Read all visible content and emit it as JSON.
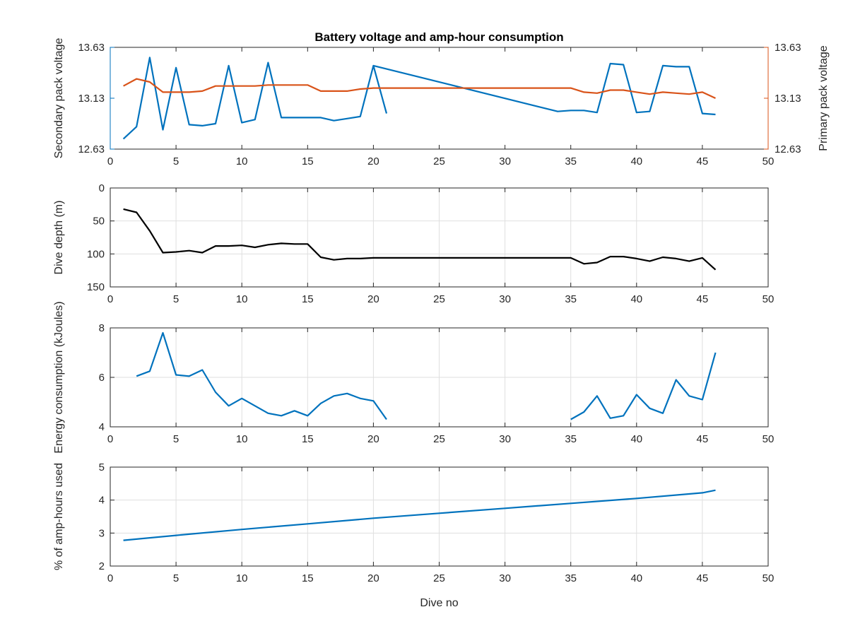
{
  "chart_data": [
    {
      "type": "line",
      "title": "Battery voltage and amp-hour consumption",
      "xlabel": "",
      "ylabel": "Secondary pack voltage",
      "y2label": "Primary pack voltage",
      "xlim": [
        0,
        50
      ],
      "ylim": [
        12.63,
        13.63
      ],
      "y2lim": [
        12.63,
        13.63
      ],
      "xticks": [
        "0",
        "5",
        "10",
        "15",
        "20",
        "25",
        "30",
        "35",
        "40",
        "45",
        "50"
      ],
      "yticks": [
        "12.63",
        "13.13",
        "13.63"
      ],
      "y2ticks": [
        "12.63",
        "13.13",
        "13.63"
      ],
      "grid": false,
      "colors": {
        "left": "#0072bd",
        "right": "#d95319"
      },
      "series": [
        {
          "axis": "left",
          "color": "#0072bd",
          "points": [
            [
              1,
              12.73
            ],
            [
              2,
              12.85
            ],
            [
              3,
              13.53
            ],
            [
              4,
              12.82
            ],
            [
              5,
              13.43
            ],
            [
              6,
              12.87
            ],
            [
              7,
              12.86
            ],
            [
              8,
              12.88
            ],
            [
              9,
              13.45
            ],
            [
              10,
              12.89
            ],
            [
              11,
              12.92
            ],
            [
              12,
              13.48
            ],
            [
              13,
              12.94
            ],
            [
              14,
              12.94
            ],
            [
              15,
              12.94
            ],
            [
              16,
              12.94
            ],
            [
              17,
              12.91
            ],
            [
              18,
              12.93
            ],
            [
              19,
              12.95
            ],
            [
              20,
              13.45
            ],
            [
              21,
              12.98
            ],
            [
              null,
              null
            ],
            [
              20,
              13.45
            ],
            [
              34,
              13
            ],
            [
              35,
              13.01
            ],
            [
              36,
              13.01
            ],
            [
              37,
              12.99
            ],
            [
              38,
              13.47
            ],
            [
              39,
              13.46
            ],
            [
              40,
              12.99
            ],
            [
              41,
              13
            ],
            [
              42,
              13.45
            ],
            [
              43,
              13.44
            ],
            [
              44,
              13.44
            ],
            [
              45,
              12.98
            ],
            [
              46,
              12.97
            ]
          ]
        },
        {
          "axis": "right",
          "color": "#d95319",
          "points": [
            [
              1,
              13.25
            ],
            [
              2,
              13.32
            ],
            [
              3,
              13.29
            ],
            [
              4,
              13.19
            ],
            [
              5,
              13.19
            ],
            [
              6,
              13.19
            ],
            [
              7,
              13.2
            ],
            [
              8,
              13.25
            ],
            [
              9,
              13.25
            ],
            [
              10,
              13.25
            ],
            [
              11,
              13.25
            ],
            [
              12,
              13.26
            ],
            [
              13,
              13.26
            ],
            [
              14,
              13.26
            ],
            [
              15,
              13.26
            ],
            [
              16,
              13.2
            ],
            [
              17,
              13.2
            ],
            [
              18,
              13.2
            ],
            [
              19,
              13.22
            ],
            [
              20,
              13.23
            ],
            [
              25,
              13.23
            ],
            [
              30,
              13.23
            ],
            [
              35,
              13.23
            ],
            [
              36,
              13.19
            ],
            [
              37,
              13.18
            ],
            [
              38,
              13.21
            ],
            [
              39,
              13.21
            ],
            [
              40,
              13.19
            ],
            [
              41,
              13.17
            ],
            [
              42,
              13.19
            ],
            [
              43,
              13.18
            ],
            [
              44,
              13.17
            ],
            [
              45,
              13.19
            ],
            [
              46,
              13.13
            ]
          ]
        }
      ]
    },
    {
      "type": "line",
      "title": "",
      "xlabel": "",
      "ylabel": "Dive depth (m)",
      "xlim": [
        0,
        50
      ],
      "ylim": [
        0,
        150
      ],
      "y_reversed": true,
      "xticks": [
        "0",
        "5",
        "10",
        "15",
        "20",
        "25",
        "30",
        "35",
        "40",
        "45",
        "50"
      ],
      "yticks": [
        "0",
        "50",
        "100",
        "150"
      ],
      "grid": true,
      "series": [
        {
          "color": "#000000",
          "points": [
            [
              1,
              32
            ],
            [
              2,
              37
            ],
            [
              3,
              65
            ],
            [
              4,
              98
            ],
            [
              5,
              97
            ],
            [
              6,
              95
            ],
            [
              7,
              98
            ],
            [
              8,
              88
            ],
            [
              9,
              88
            ],
            [
              10,
              87
            ],
            [
              11,
              90
            ],
            [
              12,
              86
            ],
            [
              13,
              84
            ],
            [
              14,
              85
            ],
            [
              15,
              85
            ],
            [
              16,
              105
            ],
            [
              17,
              109
            ],
            [
              18,
              107
            ],
            [
              19,
              107
            ],
            [
              20,
              106
            ],
            [
              25,
              106
            ],
            [
              30,
              106
            ],
            [
              35,
              106
            ],
            [
              36,
              115
            ],
            [
              37,
              113
            ],
            [
              38,
              104
            ],
            [
              39,
              104
            ],
            [
              40,
              107
            ],
            [
              41,
              111
            ],
            [
              42,
              105
            ],
            [
              43,
              107
            ],
            [
              44,
              111
            ],
            [
              45,
              106
            ],
            [
              46,
              124
            ]
          ]
        }
      ]
    },
    {
      "type": "line",
      "title": "",
      "xlabel": "",
      "ylabel": "Energy consumption (kJoules)",
      "xlim": [
        0,
        50
      ],
      "ylim": [
        4,
        8
      ],
      "xticks": [
        "0",
        "5",
        "10",
        "15",
        "20",
        "25",
        "30",
        "35",
        "40",
        "45",
        "50"
      ],
      "yticks": [
        "4",
        "6",
        "8"
      ],
      "grid": true,
      "series": [
        {
          "color": "#0072bd",
          "points": [
            [
              2,
              6.05
            ],
            [
              3,
              6.25
            ],
            [
              4,
              7.8
            ],
            [
              5,
              6.1
            ],
            [
              6,
              6.05
            ],
            [
              7,
              6.3
            ],
            [
              8,
              5.4
            ],
            [
              9,
              4.85
            ],
            [
              10,
              5.15
            ],
            [
              11,
              4.85
            ],
            [
              12,
              4.55
            ],
            [
              13,
              4.45
            ],
            [
              14,
              4.65
            ],
            [
              15,
              4.45
            ],
            [
              16,
              4.95
            ],
            [
              17,
              5.25
            ],
            [
              18,
              5.35
            ],
            [
              19,
              5.15
            ],
            [
              20,
              5.05
            ],
            [
              21,
              4.3
            ],
            [
              null,
              null
            ],
            [
              35,
              4.3
            ],
            [
              36,
              4.6
            ],
            [
              37,
              5.25
            ],
            [
              38,
              4.35
            ],
            [
              39,
              4.45
            ],
            [
              40,
              5.3
            ],
            [
              41,
              4.75
            ],
            [
              42,
              4.55
            ],
            [
              43,
              5.9
            ],
            [
              44,
              5.25
            ],
            [
              45,
              5.1
            ],
            [
              46,
              7
            ]
          ]
        }
      ]
    },
    {
      "type": "line",
      "title": "",
      "xlabel": "Dive no",
      "ylabel": "% of amp-hours used",
      "xlim": [
        0,
        50
      ],
      "ylim": [
        2,
        5
      ],
      "xticks": [
        "0",
        "5",
        "10",
        "15",
        "20",
        "25",
        "30",
        "35",
        "40",
        "45",
        "50"
      ],
      "yticks": [
        "2",
        "3",
        "4",
        "5"
      ],
      "grid": true,
      "series": [
        {
          "color": "#0072bd",
          "points": [
            [
              1,
              2.78
            ],
            [
              5,
              2.93
            ],
            [
              10,
              3.11
            ],
            [
              15,
              3.28
            ],
            [
              20,
              3.45
            ],
            [
              25,
              3.6
            ],
            [
              30,
              3.75
            ],
            [
              35,
              3.9
            ],
            [
              40,
              4.05
            ],
            [
              45,
              4.22
            ],
            [
              46,
              4.3
            ]
          ]
        }
      ]
    }
  ]
}
